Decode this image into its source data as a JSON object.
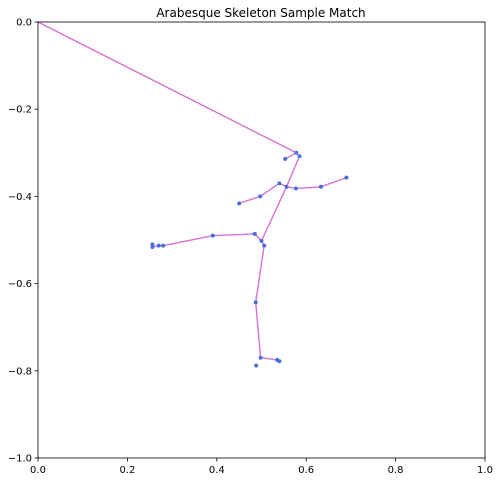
{
  "chart_data": {
    "type": "scatter",
    "title": "Arabesque Skeleton Sample Match",
    "xlabel": "",
    "ylabel": "",
    "xlim": [
      0.0,
      1.0
    ],
    "ylim": [
      -1.0,
      0.0
    ],
    "x_ticks": [
      "0.0",
      "0.2",
      "0.4",
      "0.6",
      "0.8",
      "1.0"
    ],
    "y_ticks": [
      "0.0",
      "−0.2",
      "−0.4",
      "−0.6",
      "−0.8",
      "−1.0"
    ],
    "grid": false,
    "points": [
      {
        "x": 0.553,
        "y": -0.314
      },
      {
        "x": 0.578,
        "y": -0.3
      },
      {
        "x": 0.585,
        "y": -0.308
      },
      {
        "x": 0.54,
        "y": -0.37
      },
      {
        "x": 0.556,
        "y": -0.378
      },
      {
        "x": 0.577,
        "y": -0.382
      },
      {
        "x": 0.633,
        "y": -0.378
      },
      {
        "x": 0.69,
        "y": -0.357
      },
      {
        "x": 0.497,
        "y": -0.4
      },
      {
        "x": 0.45,
        "y": -0.416
      },
      {
        "x": 0.485,
        "y": -0.486
      },
      {
        "x": 0.5,
        "y": -0.502
      },
      {
        "x": 0.506,
        "y": -0.513
      },
      {
        "x": 0.391,
        "y": -0.49
      },
      {
        "x": 0.28,
        "y": -0.513
      },
      {
        "x": 0.27,
        "y": -0.513
      },
      {
        "x": 0.256,
        "y": -0.51
      },
      {
        "x": 0.256,
        "y": -0.516
      },
      {
        "x": 0.487,
        "y": -0.643
      },
      {
        "x": 0.498,
        "y": -0.77
      },
      {
        "x": 0.535,
        "y": -0.775
      },
      {
        "x": 0.54,
        "y": -0.778
      },
      {
        "x": 0.488,
        "y": -0.788
      }
    ],
    "skeleton": [
      [
        [
          0.0,
          0.0
        ],
        [
          0.578,
          -0.3
        ]
      ],
      [
        [
          0.553,
          -0.314
        ],
        [
          0.578,
          -0.3
        ],
        [
          0.585,
          -0.308
        ],
        [
          0.556,
          -0.378
        ],
        [
          0.5,
          -0.502
        ]
      ],
      [
        [
          0.54,
          -0.37
        ],
        [
          0.556,
          -0.378
        ],
        [
          0.577,
          -0.382
        ],
        [
          0.633,
          -0.378
        ],
        [
          0.69,
          -0.357
        ]
      ],
      [
        [
          0.45,
          -0.416
        ],
        [
          0.497,
          -0.4
        ],
        [
          0.54,
          -0.37
        ]
      ],
      [
        [
          0.256,
          -0.516
        ],
        [
          0.27,
          -0.513
        ],
        [
          0.28,
          -0.513
        ],
        [
          0.391,
          -0.49
        ],
        [
          0.485,
          -0.486
        ],
        [
          0.5,
          -0.502
        ],
        [
          0.506,
          -0.513
        ],
        [
          0.487,
          -0.643
        ],
        [
          0.498,
          -0.77
        ],
        [
          0.535,
          -0.775
        ]
      ]
    ],
    "colors": {
      "line": "#da70d6",
      "point": "#4a6fd8"
    }
  }
}
